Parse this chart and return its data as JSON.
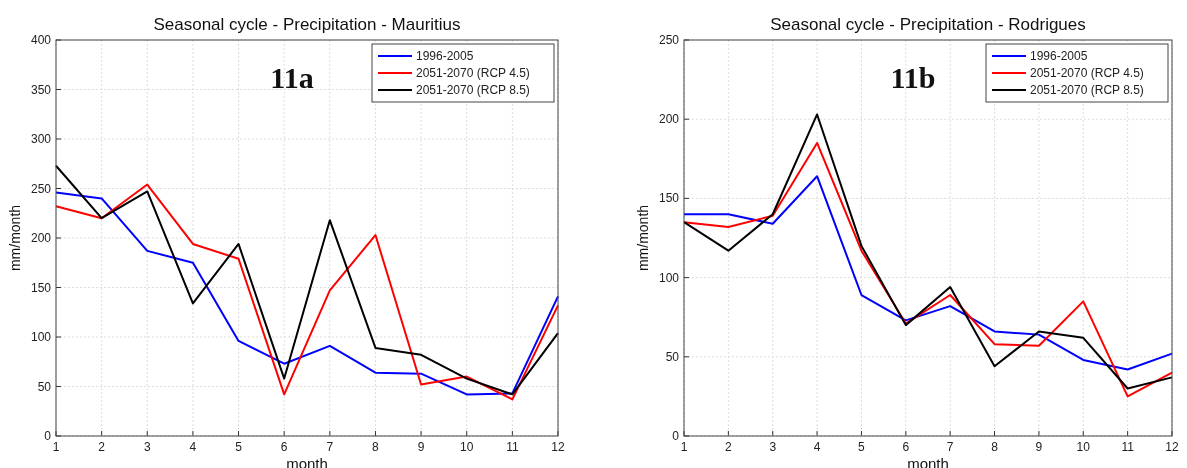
{
  "chart_data": [
    {
      "type": "line",
      "title": "Seasonal cycle  - Precipitation - Mauritius",
      "xlabel": "month",
      "ylabel": "mm/month",
      "annotations": [
        "11a"
      ],
      "x": [
        1,
        2,
        3,
        4,
        5,
        6,
        7,
        8,
        9,
        10,
        11,
        12
      ],
      "xlim": [
        1,
        12
      ],
      "xticks": [
        1,
        2,
        3,
        4,
        5,
        6,
        7,
        8,
        9,
        10,
        11,
        12
      ],
      "ylim": [
        0,
        400
      ],
      "yticks": [
        0,
        50,
        100,
        150,
        200,
        250,
        300,
        350,
        400
      ],
      "grid": true,
      "legend": "top right",
      "series": [
        {
          "name": "1996-2005",
          "color": "#0000ff",
          "values": [
            246,
            240,
            187,
            175,
            96,
            73,
            91,
            64,
            63,
            42,
            43,
            141
          ]
        },
        {
          "name": "2051-2070 (RCP 4.5)",
          "color": "#ff0000",
          "values": [
            232,
            220,
            254,
            194,
            179,
            42,
            147,
            203,
            52,
            60,
            37,
            132
          ]
        },
        {
          "name": "2051-2070 (RCP 8.5)",
          "color": "#000000",
          "values": [
            273,
            220,
            247,
            134,
            194,
            58,
            218,
            89,
            82,
            58,
            42,
            104
          ]
        }
      ]
    },
    {
      "type": "line",
      "title": "Seasonal cycle  - Precipitation - Rodrigues",
      "xlabel": "month",
      "ylabel": "mm/month",
      "annotations": [
        "11b"
      ],
      "x": [
        1,
        2,
        3,
        4,
        5,
        6,
        7,
        8,
        9,
        10,
        11,
        12
      ],
      "xlim": [
        1,
        12
      ],
      "xticks": [
        1,
        2,
        3,
        4,
        5,
        6,
        7,
        8,
        9,
        10,
        11,
        12
      ],
      "ylim": [
        0,
        250
      ],
      "yticks": [
        0,
        50,
        100,
        150,
        200,
        250
      ],
      "grid": true,
      "legend": "top right",
      "series": [
        {
          "name": "1996-2005",
          "color": "#0000ff",
          "values": [
            140,
            140,
            134,
            164,
            89,
            73,
            82,
            66,
            64,
            48,
            42,
            52
          ]
        },
        {
          "name": "2051-2070 (RCP 4.5)",
          "color": "#ff0000",
          "values": [
            135,
            132,
            139,
            185,
            117,
            71,
            89,
            58,
            57,
            85,
            25,
            40
          ]
        },
        {
          "name": "2051-2070 (RCP 8.5)",
          "color": "#000000",
          "values": [
            135,
            117,
            140,
            203,
            120,
            70,
            94,
            44,
            66,
            62,
            30,
            37
          ]
        }
      ]
    }
  ]
}
